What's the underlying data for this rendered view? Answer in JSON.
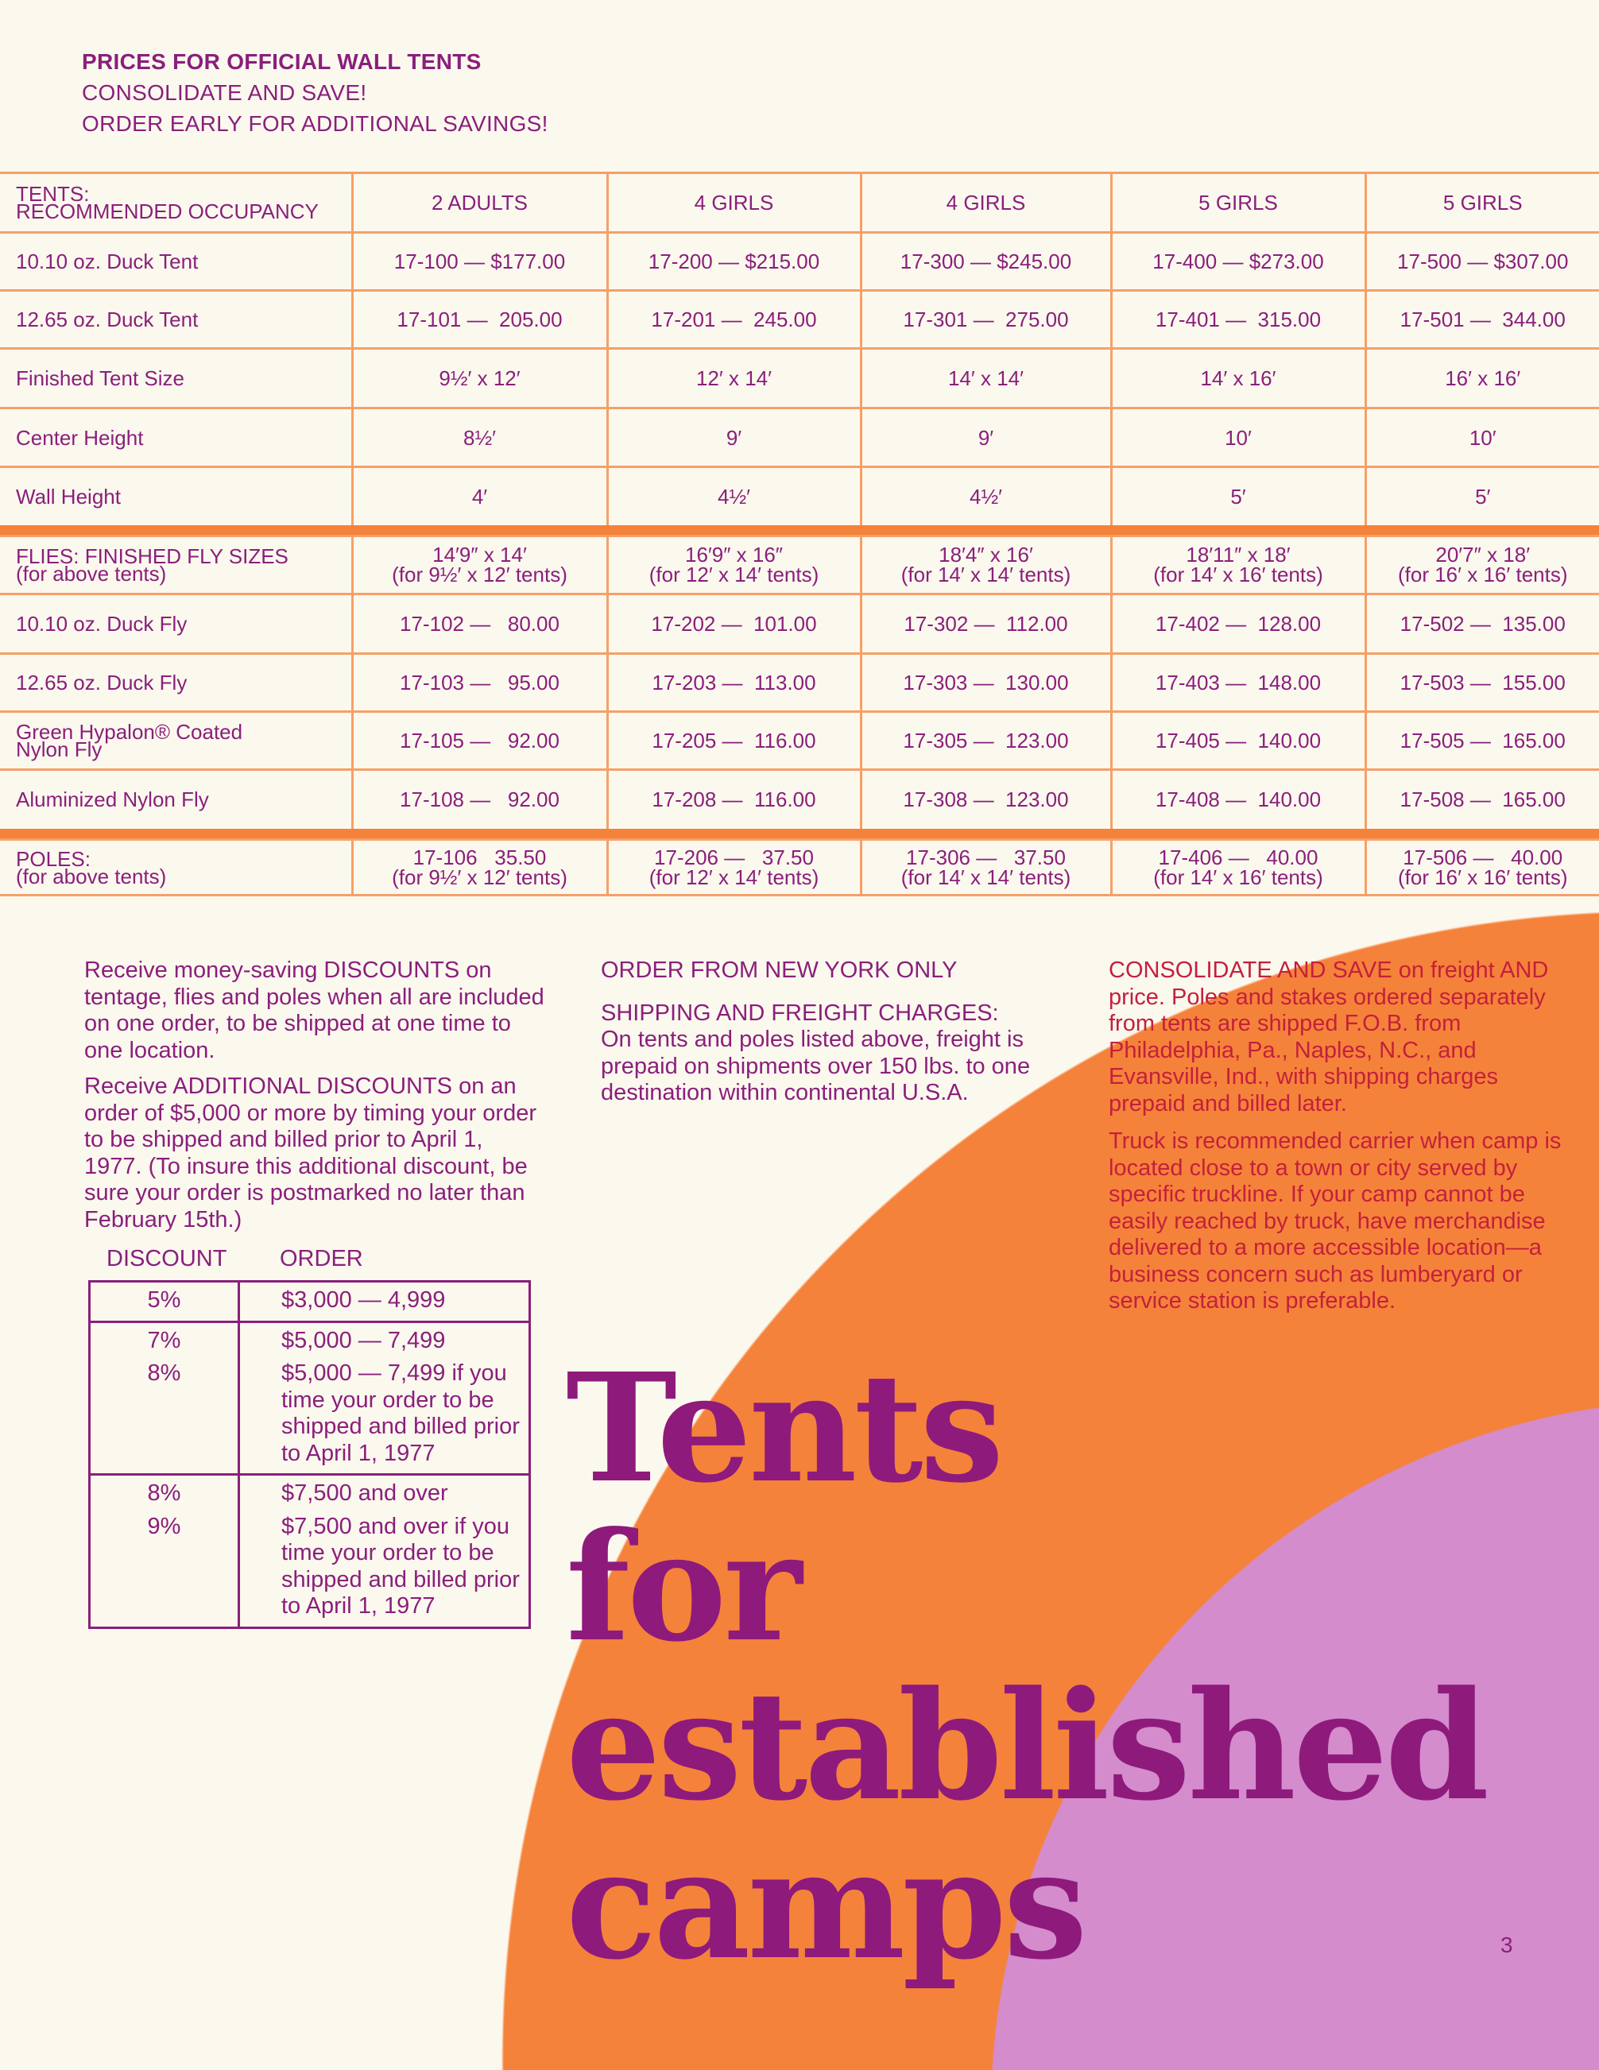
{
  "colors": {
    "text": "#8a1f7c",
    "orange": "#f5823a",
    "lavender": "#d48ccc",
    "rule": "#f5a068",
    "right_text": "#c4203c"
  },
  "header": {
    "title": "PRICES FOR OFFICIAL WALL TENTS",
    "line1": "CONSOLIDATE AND SAVE!",
    "line2": "ORDER EARLY FOR ADDITIONAL SAVINGS!"
  },
  "price_table": {
    "tents": [
      {
        "label": [
          "TENTS:",
          "RECOMMENDED OCCUPANCY"
        ],
        "cells": [
          "2 ADULTS",
          "4 GIRLS",
          "4 GIRLS",
          "5 GIRLS",
          "5 GIRLS"
        ]
      },
      {
        "label": [
          "10.10 oz. Duck Tent"
        ],
        "cells": [
          "17-100 — $177.00",
          "17-200 — $215.00",
          "17-300 — $245.00",
          "17-400 — $273.00",
          "17-500 — $307.00"
        ]
      },
      {
        "label": [
          "12.65 oz. Duck Tent"
        ],
        "cells": [
          "17-101 —  205.00",
          "17-201 —  245.00",
          "17-301 —  275.00",
          "17-401 —  315.00",
          "17-501 —  344.00"
        ]
      },
      {
        "label": [
          "Finished Tent Size"
        ],
        "cells": [
          "9½′ x 12′",
          "12′ x 14′",
          "14′ x 14′",
          "14′ x 16′",
          "16′ x 16′"
        ]
      },
      {
        "label": [
          "Center Height"
        ],
        "cells": [
          "8½′",
          "9′",
          "9′",
          "10′",
          "10′"
        ]
      },
      {
        "label": [
          "Wall Height"
        ],
        "cells": [
          "4′",
          "4½′",
          "4½′",
          "5′",
          "5′"
        ]
      }
    ],
    "flies": [
      {
        "label": [
          "FLIES: FINISHED FLY SIZES",
          "(for above tents)"
        ],
        "cells": [
          [
            "14′9″ x 14′",
            "(for 9½′ x 12′ tents)"
          ],
          [
            "16′9″ x 16″",
            "(for 12′ x 14′ tents)"
          ],
          [
            "18′4″ x 16′",
            "(for 14′ x 14′ tents)"
          ],
          [
            "18′11″ x 18′",
            "(for 14′ x 16′ tents)"
          ],
          [
            "20′7″ x 18′",
            "(for 16′ x 16′ tents)"
          ]
        ]
      },
      {
        "label": [
          "10.10 oz. Duck Fly"
        ],
        "cells": [
          "17-102 —   80.00",
          "17-202 —  101.00",
          "17-302 —  112.00",
          "17-402 —  128.00",
          "17-502 —  135.00"
        ]
      },
      {
        "label": [
          "12.65 oz. Duck Fly"
        ],
        "cells": [
          "17-103 —   95.00",
          "17-203 —  113.00",
          "17-303 —  130.00",
          "17-403 —  148.00",
          "17-503 —  155.00"
        ]
      },
      {
        "label": [
          "Green Hypalon® Coated",
          "Nylon Fly"
        ],
        "cells": [
          "17-105 —   92.00",
          "17-205 —  116.00",
          "17-305 —  123.00",
          "17-405 —  140.00",
          "17-505 —  165.00"
        ]
      },
      {
        "label": [
          "Aluminized Nylon Fly"
        ],
        "cells": [
          "17-108 —   92.00",
          "17-208 —  116.00",
          "17-308 —  123.00",
          "17-408 —  140.00",
          "17-508 —  165.00"
        ]
      }
    ],
    "poles": [
      {
        "label": [
          "POLES:",
          "(for above tents)"
        ],
        "cells": [
          [
            "17-106   35.50",
            "(for 9½′ x 12′ tents)"
          ],
          [
            "17-206 —   37.50",
            "(for 12′ x 14′ tents)"
          ],
          [
            "17-306 —   37.50",
            "(for 14′ x 14′ tents)"
          ],
          [
            "17-406 —   40.00",
            "(for 14′ x 16′ tents)"
          ],
          [
            "17-506 —   40.00",
            "(for 16′ x 16′ tents)"
          ]
        ]
      }
    ]
  },
  "left_column": {
    "p1": "Receive money-saving DISCOUNTS on tentage, flies and poles when all are included on one order, to be shipped at one time to one location.",
    "p2": "Receive ADDITIONAL DISCOUNTS on an order of $5,000 or more by timing your order to be shipped and billed prior to April 1, 1977. (To insure this additional discount, be sure your order is postmarked no later than February 15th.)"
  },
  "discount_table": {
    "headers": [
      "DISCOUNT",
      "ORDER"
    ],
    "groups": [
      [
        [
          "5%",
          "$3,000 — 4,999"
        ]
      ],
      [
        [
          "7%",
          "$5,000 — 7,499"
        ],
        [
          "8%",
          "$5,000 — 7,499 if you time your order to be shipped and billed prior to April 1, 1977"
        ]
      ],
      [
        [
          "8%",
          "$7,500 and over"
        ],
        [
          "9%",
          "$7,500 and over if you time your order to be shipped and billed prior to April 1, 1977"
        ]
      ]
    ]
  },
  "middle_column": {
    "p1": "ORDER FROM NEW YORK ONLY",
    "p2_title": "SHIPPING AND FREIGHT CHARGES:",
    "p2": "On tents and poles listed above, freight is prepaid on shipments over 150 lbs. to one destination within continental U.S.A."
  },
  "right_column": {
    "p1": "CONSOLIDATE AND SAVE on freight AND price. Poles and stakes ordered separately from tents are shipped F.O.B. from Philadelphia, Pa., Naples, N.C., and Evansville, Ind., with shipping charges prepaid and billed later.",
    "p2": "Truck is recommended carrier when camp is located close to a town or city served by specific truckline. If your camp cannot be easily reached by truck, have merchandise delivered to a more accessible location—a business concern such as lumberyard or service station is preferable."
  },
  "headline": [
    "Tents",
    "for",
    "established",
    "camps"
  ],
  "page_number": "3"
}
